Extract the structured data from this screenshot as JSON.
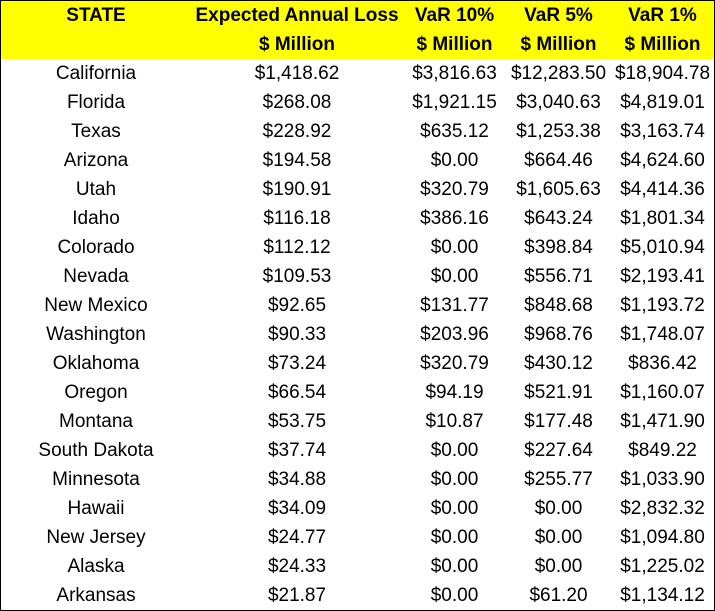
{
  "header": {
    "row1": [
      "STATE",
      "Expected Annual Loss",
      "VaR 10%",
      "VaR 5%",
      "VaR 1%"
    ],
    "row2": [
      "",
      "$ Million",
      "$ Million",
      "$ Million",
      "$ Million"
    ]
  },
  "rows": [
    [
      "California",
      "$1,418.62",
      "$3,816.63",
      "$12,283.50",
      "$18,904.78"
    ],
    [
      "Florida",
      "$268.08",
      "$1,921.15",
      "$3,040.63",
      "$4,819.01"
    ],
    [
      "Texas",
      "$228.92",
      "$635.12",
      "$1,253.38",
      "$3,163.74"
    ],
    [
      "Arizona",
      "$194.58",
      "$0.00",
      "$664.46",
      "$4,624.60"
    ],
    [
      "Utah",
      "$190.91",
      "$320.79",
      "$1,605.63",
      "$4,414.36"
    ],
    [
      "Idaho",
      "$116.18",
      "$386.16",
      "$643.24",
      "$1,801.34"
    ],
    [
      "Colorado",
      "$112.12",
      "$0.00",
      "$398.84",
      "$5,010.94"
    ],
    [
      "Nevada",
      "$109.53",
      "$0.00",
      "$556.71",
      "$2,193.41"
    ],
    [
      "New Mexico",
      "$92.65",
      "$131.77",
      "$848.68",
      "$1,193.72"
    ],
    [
      "Washington",
      "$90.33",
      "$203.96",
      "$968.76",
      "$1,748.07"
    ],
    [
      "Oklahoma",
      "$73.24",
      "$320.79",
      "$430.12",
      "$836.42"
    ],
    [
      "Oregon",
      "$66.54",
      "$94.19",
      "$521.91",
      "$1,160.07"
    ],
    [
      "Montana",
      "$53.75",
      "$10.87",
      "$177.48",
      "$1,471.90"
    ],
    [
      "South Dakota",
      "$37.74",
      "$0.00",
      "$227.64",
      "$849.22"
    ],
    [
      "Minnesota",
      "$34.88",
      "$0.00",
      "$255.77",
      "$1,033.90"
    ],
    [
      "Hawaii",
      "$34.09",
      "$0.00",
      "$0.00",
      "$2,832.32"
    ],
    [
      "New Jersey",
      "$24.77",
      "$0.00",
      "$0.00",
      "$1,094.80"
    ],
    [
      "Alaska",
      "$24.33",
      "$0.00",
      "$0.00",
      "$1,225.02"
    ],
    [
      "Arkansas",
      "$21.87",
      "$0.00",
      "$61.20",
      "$1,134.12"
    ]
  ],
  "colors": {
    "header_background": "#ffff00",
    "text": "#000000",
    "border": "#000000"
  }
}
